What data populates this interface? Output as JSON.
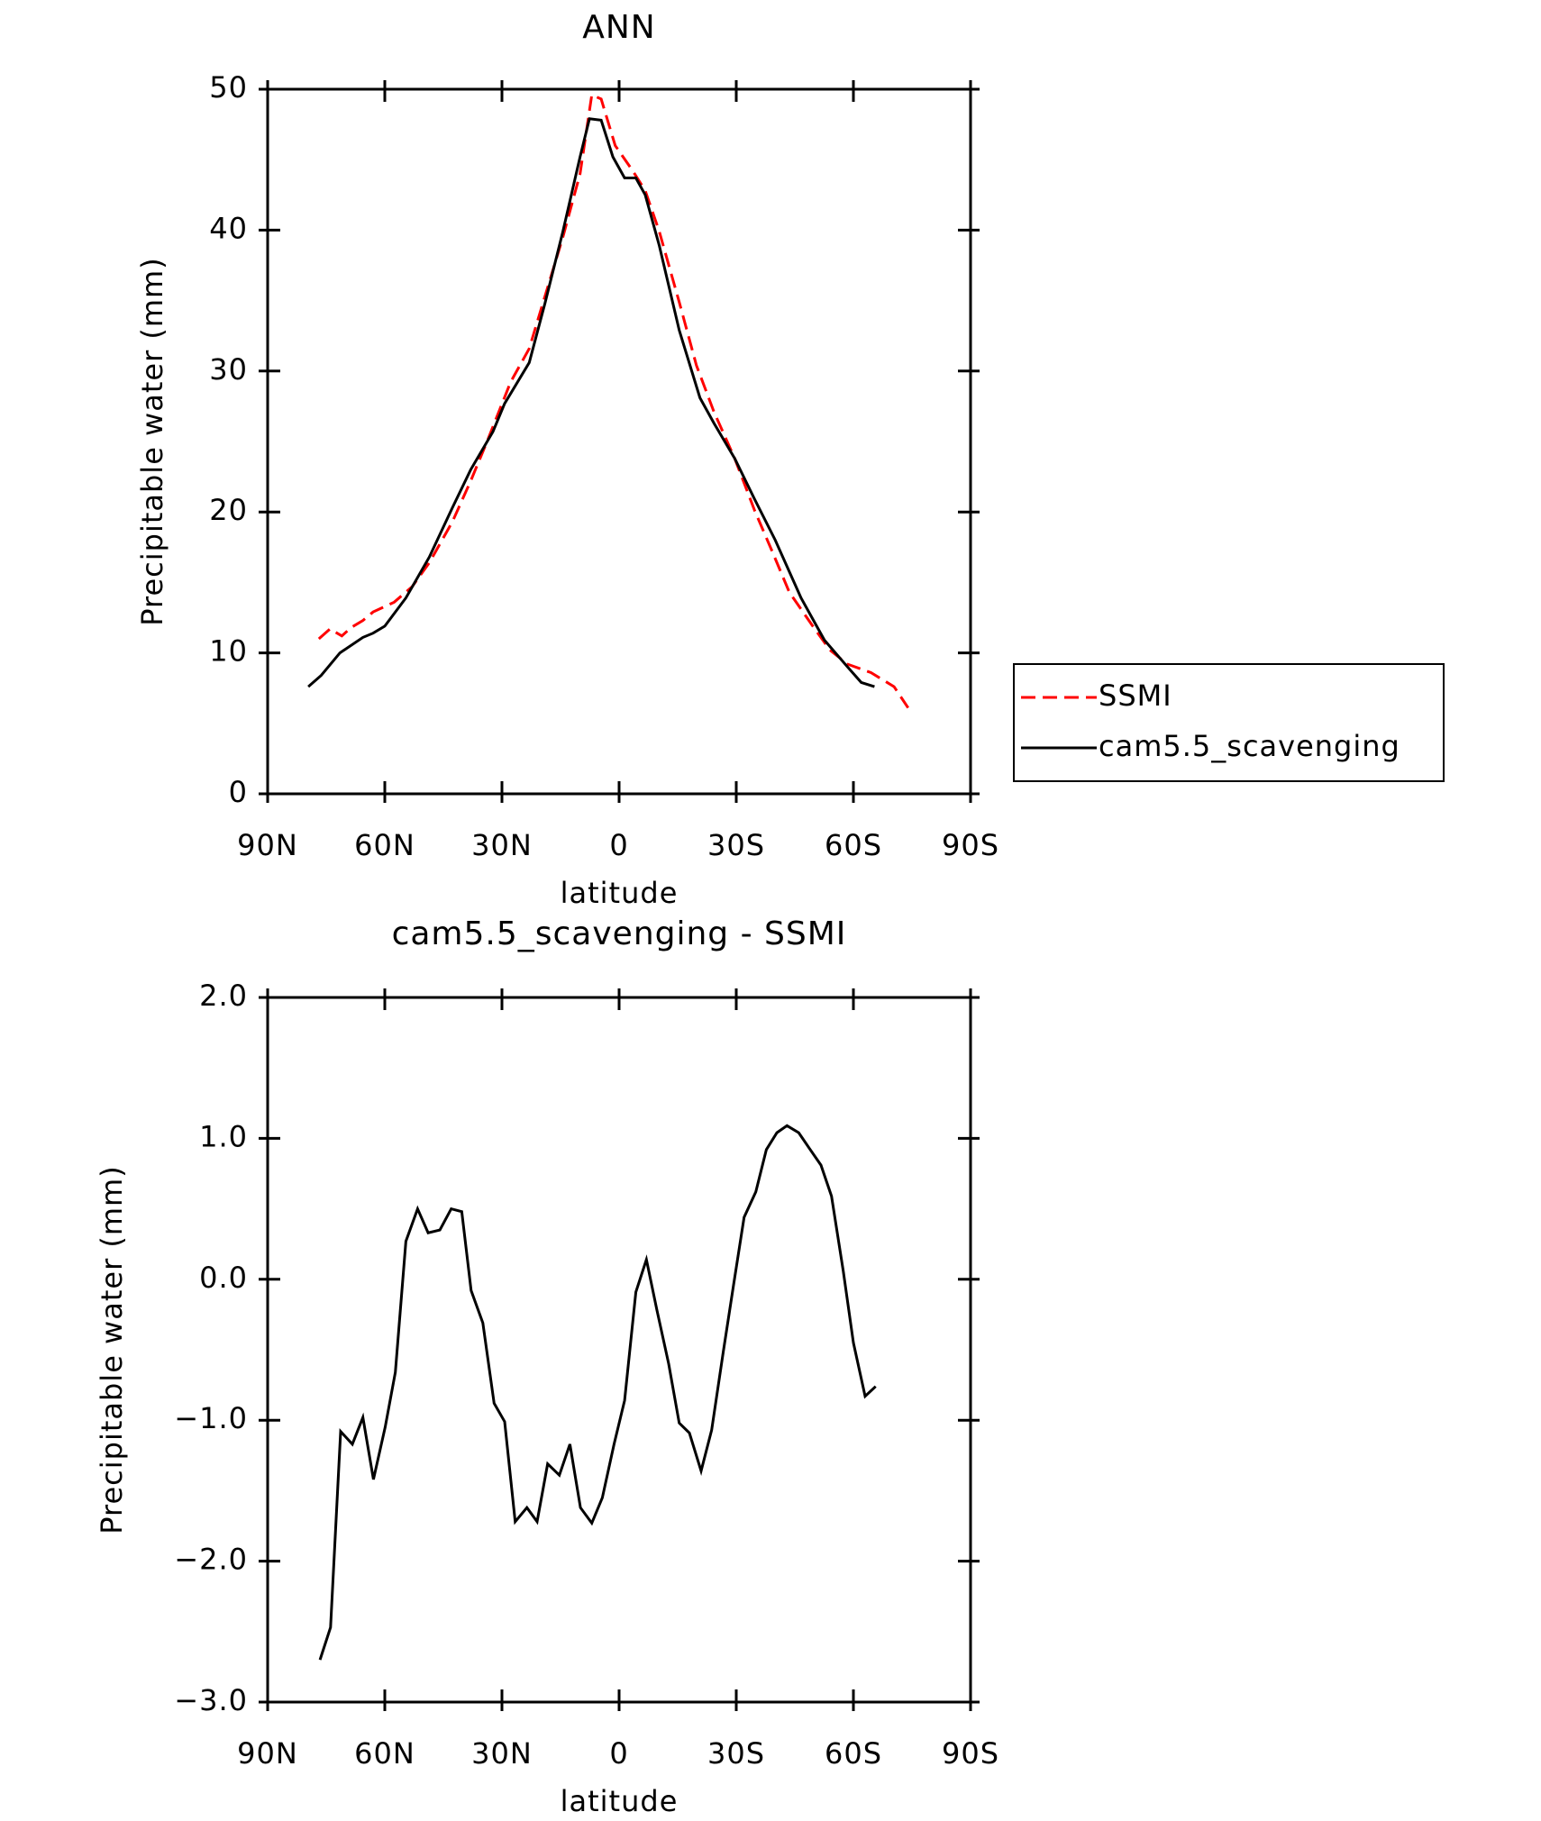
{
  "chart_data": [
    {
      "type": "line",
      "title": "ANN",
      "xlabel": "latitude",
      "ylabel": "Precipitable water (mm)",
      "xlim": [
        90,
        -90
      ],
      "xticks": [
        {
          "value": 90,
          "label": "90N"
        },
        {
          "value": 60,
          "label": "60N"
        },
        {
          "value": 30,
          "label": "30N"
        },
        0,
        {
          "value": -30,
          "label": "30S"
        },
        {
          "value": -60,
          "label": "60S"
        },
        {
          "value": -90,
          "label": "90S"
        }
      ],
      "ylim": [
        0,
        50
      ],
      "yticks": [
        0,
        10,
        20,
        30,
        40,
        50
      ],
      "legend": "right",
      "series": [
        {
          "name": "SSMI",
          "color": "#ff0000",
          "line_style": "dashed",
          "x": [
            76.9,
            74.0,
            71.0,
            68.6,
            65.6,
            63.0,
            57.6,
            53.0,
            48.6,
            42.7,
            38.0,
            33.8,
            27.8,
            23.0,
            19.0,
            14.4,
            10.0,
            7.0,
            4.6,
            1.0,
            -3.5,
            -6.7,
            -10.3,
            -15.4,
            -19.8,
            -24.3,
            -29.6,
            -34.7,
            -39.2,
            -43.6,
            -49.6,
            -54.0,
            -58.5,
            -64.5,
            -70.4,
            -74.0
          ],
          "values": [
            11.0,
            11.7,
            11.2,
            11.8,
            12.3,
            12.9,
            13.6,
            14.7,
            16.4,
            19.3,
            22.2,
            25.0,
            29.2,
            31.6,
            35.3,
            39.5,
            44.0,
            49.6,
            49.3,
            46.0,
            44.2,
            42.8,
            39.9,
            34.9,
            30.4,
            27.1,
            23.8,
            20.1,
            17.2,
            14.3,
            11.9,
            10.2,
            9.2,
            8.6,
            7.6,
            6.1
          ]
        },
        {
          "name": "cam5.5_scavenging",
          "color": "#000000",
          "line_style": "solid",
          "x": [
            79.6,
            76.3,
            71.5,
            65.6,
            63.0,
            60.0,
            54.6,
            48.6,
            42.7,
            38.0,
            32.3,
            29.3,
            23.0,
            19.0,
            14.4,
            10.0,
            7.6,
            4.6,
            1.6,
            -1.4,
            -4.3,
            -6.7,
            -10.3,
            -15.4,
            -20.7,
            -24.3,
            -29.6,
            -34.7,
            -40.0,
            -46.6,
            -52.6,
            -58.5,
            -62.0,
            -65.4
          ],
          "values": [
            7.6,
            8.4,
            10.0,
            11.1,
            11.4,
            11.9,
            13.9,
            16.8,
            20.3,
            23.0,
            25.7,
            27.7,
            30.6,
            34.8,
            39.9,
            45.2,
            47.9,
            47.8,
            45.2,
            43.7,
            43.7,
            42.5,
            38.9,
            32.9,
            28.1,
            26.3,
            23.8,
            20.9,
            18.0,
            13.9,
            10.9,
            9.0,
            7.9,
            7.6
          ]
        }
      ]
    },
    {
      "type": "line",
      "title": "cam5.5_scavenging - SSMI",
      "xlabel": "latitude",
      "ylabel": "Precipitable water (mm)",
      "xlim": [
        90,
        -90
      ],
      "xticks": [
        {
          "value": 90,
          "label": "90N"
        },
        {
          "value": 60,
          "label": "60N"
        },
        {
          "value": 30,
          "label": "30N"
        },
        0,
        {
          "value": -30,
          "label": "30S"
        },
        {
          "value": -60,
          "label": "60S"
        },
        {
          "value": -90,
          "label": "90S"
        }
      ],
      "ylim": [
        -3,
        2
      ],
      "yticks": [
        {
          "value": -3,
          "label": "−3.0"
        },
        {
          "value": -2,
          "label": "−2.0"
        },
        {
          "value": -1,
          "label": "−1.0"
        },
        {
          "value": 0,
          "label": "0.0"
        },
        {
          "value": 1,
          "label": "1.0"
        },
        {
          "value": 2,
          "label": "2.0"
        }
      ],
      "color": "#000000",
      "x": [
        76.6,
        73.9,
        71.3,
        68.3,
        65.6,
        62.9,
        59.9,
        57.3,
        54.6,
        51.6,
        48.9,
        45.9,
        43.0,
        40.3,
        37.9,
        34.9,
        32.0,
        29.3,
        26.6,
        23.6,
        21.0,
        18.3,
        15.3,
        12.6,
        9.9,
        7.0,
        4.3,
        1.3,
        -1.4,
        -4.3,
        -7.0,
        -9.7,
        -12.7,
        -15.4,
        -18.0,
        -21.0,
        -23.7,
        -26.7,
        -29.3,
        -32.0,
        -35.0,
        -37.7,
        -40.4,
        -43.0,
        -46.0,
        -48.7,
        -51.7,
        -54.4,
        -57.4,
        -60.0,
        -63.0,
        -65.7
      ],
      "values": [
        -2.7,
        -2.47,
        -1.08,
        -1.17,
        -0.98,
        -1.42,
        -1.05,
        -0.66,
        0.27,
        0.5,
        0.33,
        0.35,
        0.5,
        0.48,
        -0.08,
        -0.31,
        -0.88,
        -1.01,
        -1.72,
        -1.62,
        -1.72,
        -1.31,
        -1.39,
        -1.17,
        -1.62,
        -1.73,
        -1.55,
        -1.17,
        -0.86,
        -0.09,
        0.14,
        -0.22,
        -0.6,
        -1.02,
        -1.09,
        -1.36,
        -1.07,
        -0.51,
        -0.04,
        0.44,
        0.62,
        0.92,
        1.04,
        1.09,
        1.04,
        0.93,
        0.81,
        0.59,
        0.06,
        -0.45,
        -0.83,
        -0.76
      ]
    }
  ]
}
